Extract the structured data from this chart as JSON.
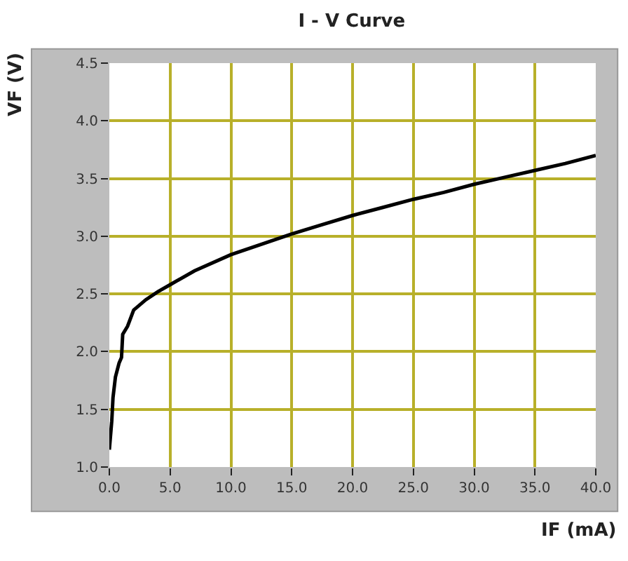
{
  "chart_data": {
    "type": "line",
    "title": "I - V Curve",
    "xlabel": "IF (mA)",
    "ylabel": "VF (V)",
    "x": [
      0,
      0.2,
      0.3,
      0.5,
      0.8,
      1.0,
      1.1,
      1.5,
      2,
      3,
      4,
      5,
      7,
      10,
      12.5,
      15,
      17.5,
      20,
      22.5,
      25,
      27.5,
      30,
      32.5,
      35,
      37.5,
      40
    ],
    "series": [
      {
        "color": "#000000",
        "values": [
          1.15,
          1.4,
          1.6,
          1.78,
          1.9,
          1.95,
          2.15,
          2.22,
          2.36,
          2.45,
          2.52,
          2.58,
          2.7,
          2.84,
          2.93,
          3.02,
          3.1,
          3.18,
          3.25,
          3.32,
          3.38,
          3.45,
          3.51,
          3.57,
          3.63,
          3.7
        ]
      }
    ],
    "xlim": [
      0,
      40
    ],
    "xticks": [
      {
        "value": 0,
        "label": "0.0"
      },
      {
        "value": 5,
        "label": "5.0"
      },
      {
        "value": 10,
        "label": "10.0"
      },
      {
        "value": 15,
        "label": "15.0"
      },
      {
        "value": 20,
        "label": "20.0"
      },
      {
        "value": 25,
        "label": "25.0"
      },
      {
        "value": 30,
        "label": "30.0"
      },
      {
        "value": 35,
        "label": "35.0"
      },
      {
        "value": 40,
        "label": "40.0"
      }
    ],
    "ylim": [
      1.0,
      4.5
    ],
    "yticks": [
      {
        "value": 1.0,
        "label": "1.0"
      },
      {
        "value": 1.5,
        "label": "1.5"
      },
      {
        "value": 2.0,
        "label": "2.0"
      },
      {
        "value": 2.5,
        "label": "2.5"
      },
      {
        "value": 3.0,
        "label": "3.0"
      },
      {
        "value": 3.5,
        "label": "3.5"
      },
      {
        "value": 4.0,
        "label": "4.0"
      },
      {
        "value": 4.5,
        "label": "4.5"
      }
    ],
    "grid": true,
    "marker": "none",
    "line_style": "solid"
  }
}
